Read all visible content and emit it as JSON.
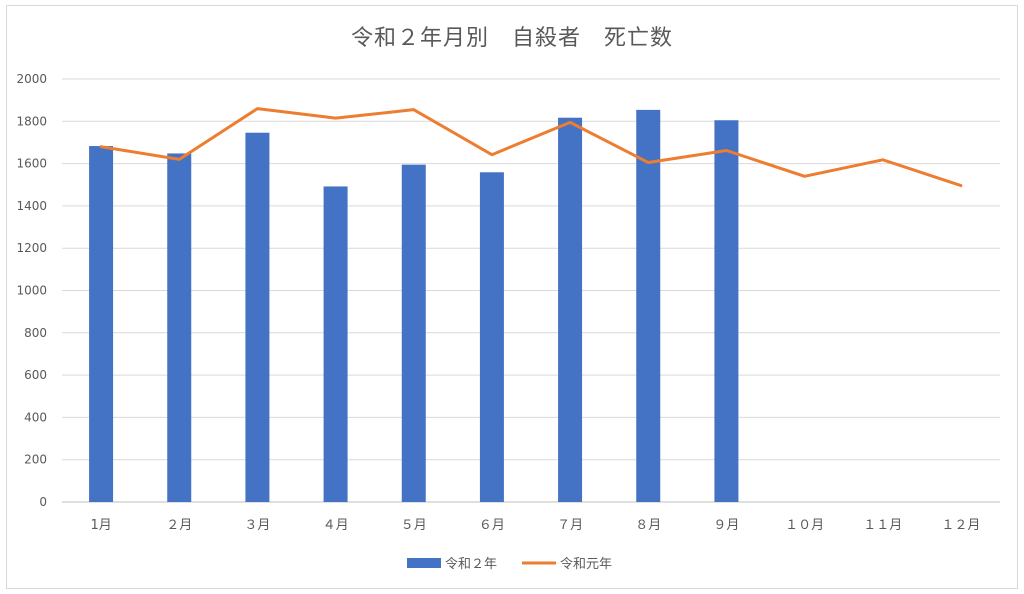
{
  "chart_data": {
    "type": "bar",
    "title": "令和２年月別　自殺者　死亡数",
    "categories": [
      "1月",
      "２月",
      "３月",
      "４月",
      "５月",
      "６月",
      "７月",
      "８月",
      "９月",
      "１０月",
      "１１月",
      "１２月"
    ],
    "series": [
      {
        "name": "令和２年",
        "type": "bar",
        "color": "#4472c4",
        "values": [
          1683,
          1648,
          1746,
          1492,
          1595,
          1559,
          1817,
          1854,
          1805,
          null,
          null,
          null
        ]
      },
      {
        "name": "令和元年",
        "type": "line",
        "color": "#ed7d31",
        "values": [
          1680,
          1620,
          1860,
          1815,
          1855,
          1642,
          1795,
          1605,
          1662,
          1540,
          1618,
          1496
        ]
      }
    ],
    "ylim": [
      0,
      2000
    ],
    "yticks": [
      0,
      200,
      400,
      600,
      800,
      1000,
      1200,
      1400,
      1600,
      1800,
      2000
    ],
    "grid": true,
    "legend_position": "bottom"
  }
}
